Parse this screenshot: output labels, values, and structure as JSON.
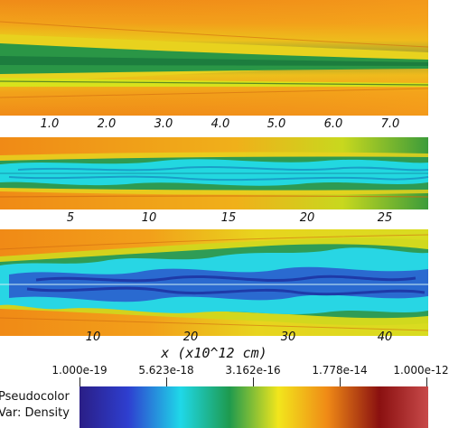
{
  "chart_data": [
    {
      "type": "heatmap",
      "panel": 1,
      "quantity": "Density",
      "x_ticks": [
        "1.0",
        "2.0",
        "3.0",
        "4.0",
        "5.0",
        "6.0",
        "7.0"
      ],
      "x_tick_values": [
        1.0,
        2.0,
        3.0,
        4.0,
        5.0,
        6.0,
        7.0
      ],
      "xlim": [
        0.0,
        7.75
      ]
    },
    {
      "type": "heatmap",
      "panel": 2,
      "quantity": "Density",
      "x_ticks": [
        "5",
        "10",
        "15",
        "20",
        "25"
      ],
      "x_tick_values": [
        5,
        10,
        15,
        20,
        25
      ],
      "xlim": [
        0.0,
        28
      ]
    },
    {
      "type": "heatmap",
      "panel": 3,
      "quantity": "Density",
      "x_ticks": [
        "10",
        "20",
        "30",
        "40"
      ],
      "x_tick_values": [
        10,
        20,
        30,
        40
      ],
      "xlim": [
        0.0,
        45
      ],
      "xlabel": "x (x10^12 cm)"
    }
  ],
  "legend": {
    "line1": "Pseudocolor",
    "line2": "Var: Density"
  },
  "colorbar": {
    "scale": "log",
    "range": [
      1e-19,
      1e-12
    ],
    "tick_labels": [
      "1.000e-19",
      "5.623e-18",
      "3.162e-16",
      "1.778e-14",
      "1.000e-12"
    ],
    "colors": [
      "#2a1e86",
      "#2e3fd0",
      "#1fd8e8",
      "#1e9a4e",
      "#f2e61c",
      "#f08a16",
      "#8a1010",
      "#c84a4a"
    ]
  }
}
